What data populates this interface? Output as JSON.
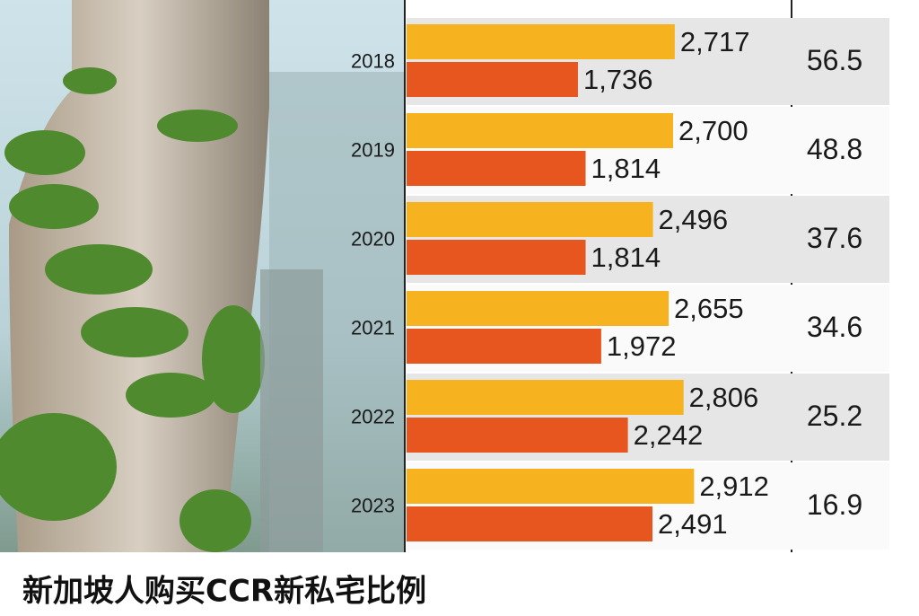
{
  "chart_data": {
    "type": "bar",
    "orientation": "horizontal",
    "title": "新加坡人购买CCR新私宅比例",
    "categories": [
      "2018",
      "2019",
      "2020",
      "2021",
      "2022",
      "2023"
    ],
    "series": [
      {
        "color": "#f6b21f",
        "values": [
          2717,
          2700,
          2496,
          2655,
          2806,
          2912
        ],
        "value_labels": [
          "2,717",
          "2,700",
          "2,496",
          "2,655",
          "2,806",
          "2,912"
        ]
      },
      {
        "color": "#e8561f",
        "values": [
          1736,
          1814,
          1814,
          1972,
          2242,
          2491
        ],
        "value_labels": [
          "1,736",
          "1,814",
          "1,814",
          "1,972",
          "2,242",
          "2,491"
        ]
      }
    ],
    "ratio": [
      56.5,
      48.8,
      37.6,
      34.6,
      25.2,
      16.9
    ]
  }
}
